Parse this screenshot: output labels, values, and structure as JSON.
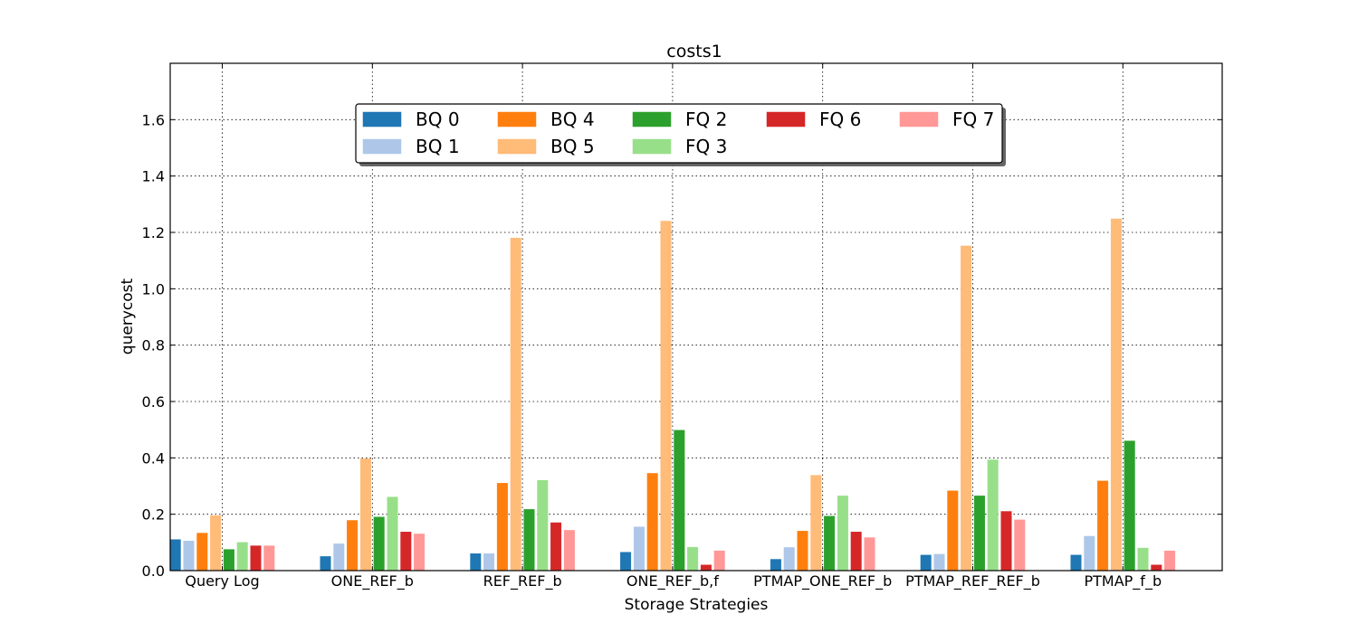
{
  "chart_data": {
    "type": "bar",
    "title": "costs1",
    "xlabel": "Storage Strategies",
    "ylabel": "querycost",
    "ylim": [
      0,
      1.8
    ],
    "yticks": [
      "0.0",
      "0.2",
      "0.4",
      "0.6",
      "0.8",
      "1.0",
      "1.2",
      "1.4",
      "1.6"
    ],
    "grid": true,
    "legend_position": "top-center",
    "categories": [
      "Query Log",
      "ONE_REF_b",
      "REF_REF_b",
      "ONE_REF_b,f",
      "PTMAP_ONE_REF_b",
      "PTMAP_REF_REF_b",
      "PTMAP_f_b"
    ],
    "series": [
      {
        "name": "BQ 0",
        "color": "#1f77b4",
        "values": [
          0.11,
          0.05,
          0.06,
          0.065,
          0.04,
          0.055,
          0.055
        ]
      },
      {
        "name": "BQ 1",
        "color": "#aec7e8",
        "values": [
          0.105,
          0.095,
          0.06,
          0.155,
          0.082,
          0.058,
          0.122
        ]
      },
      {
        "name": "BQ 4",
        "color": "#ff7f0e",
        "values": [
          0.133,
          0.178,
          0.31,
          0.345,
          0.14,
          0.283,
          0.318
        ]
      },
      {
        "name": "BQ 5",
        "color": "#ffbb78",
        "values": [
          0.195,
          0.397,
          1.18,
          1.24,
          0.338,
          1.152,
          1.248
        ]
      },
      {
        "name": "FQ 2",
        "color": "#2ca02c",
        "values": [
          0.075,
          0.19,
          0.217,
          0.498,
          0.193,
          0.265,
          0.46
        ]
      },
      {
        "name": "FQ 3",
        "color": "#98df8a",
        "values": [
          0.1,
          0.261,
          0.32,
          0.083,
          0.265,
          0.393,
          0.08
        ]
      },
      {
        "name": "FQ 6",
        "color": "#d62728",
        "values": [
          0.088,
          0.137,
          0.17,
          0.02,
          0.137,
          0.21,
          0.02
        ]
      },
      {
        "name": "FQ 7",
        "color": "#ff9896",
        "values": [
          0.088,
          0.13,
          0.143,
          0.07,
          0.117,
          0.18,
          0.07
        ]
      }
    ]
  }
}
